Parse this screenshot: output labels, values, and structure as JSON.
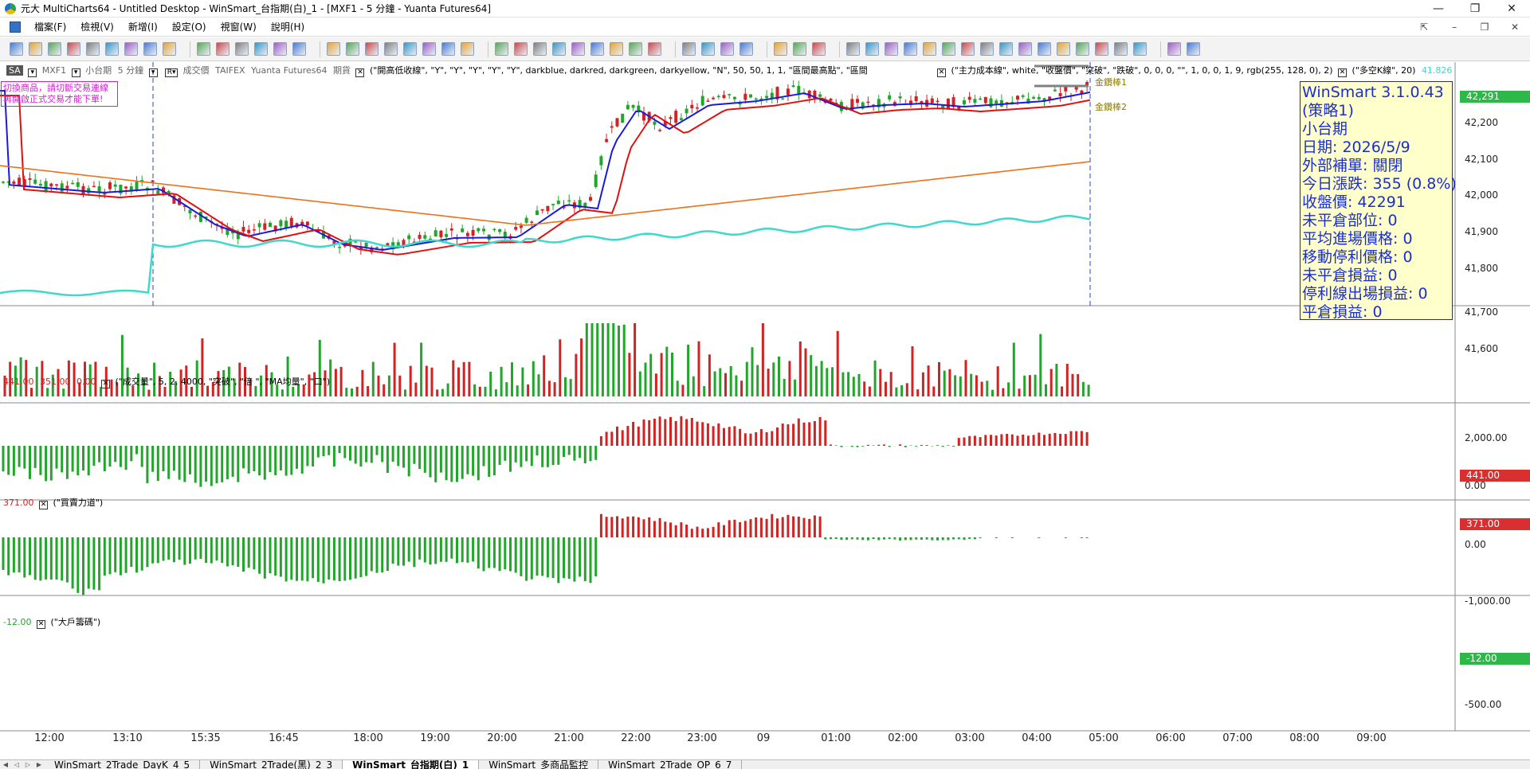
{
  "window": {
    "title": "元大 MultiCharts64 - Untitled Desktop - WinSmart_台指期(白)_1 - [MXF1 - 5 分鐘 - Yuanta Futures64]",
    "buttons": [
      "—",
      "❐",
      "✕"
    ]
  },
  "menu": {
    "items": [
      "檔案(F)",
      "檢視(V)",
      "新增(I)",
      "設定(O)",
      "視窗(W)",
      "說明(H)"
    ],
    "right_buttons": [
      "⇱",
      "–",
      "❐",
      "✕"
    ]
  },
  "chart": {
    "header": {
      "mode": "SA",
      "symbol": "MXF1",
      "name": "小台期",
      "interval": "5 分鐘",
      "field": "成交價",
      "exchange": "TAIFEX",
      "datafeed": "Yuanta Futures64",
      "type": "期貨",
      "indicator1": "(\"開高低收線\", \"Y\", \"Y\", \"Y\", \"Y\", \"Y\", darkblue, darkred, darkgreen, darkyellow, \"N\", 50, 50, 1, 1, \"區間最高點\", \"區間",
      "indicator2": "(\"主力成本線\", white, \"收盤價\", \"突破\", \"跌破\", 0, 0, 0, \"\", 1, 0, 0, 1, 9, rgb(255, 128, 0), 2)",
      "indicator3": "(\"多空K線\", 20)",
      "indicator3_value": "41.826"
    },
    "warning": [
      "切換商品，請切斷交易連線",
      "再開啟正式交易才能下單!"
    ],
    "gold_labels": [
      "金鑽棒1",
      "金鑽棒2"
    ],
    "info": [
      "WinSmart 3.1.0.43",
      "(策略1)",
      "小台期",
      "日期: 2026/5/9",
      "外部補單: 關閉",
      "今日漲跌: 355 (0.8%)",
      "收盤價: 42291",
      "未平倉部位: 0",
      "平均進場價格: 0",
      "移動停利價格: 0",
      "未平倉損益: 0",
      "停利線出場損益: 0",
      "平倉損益: 0"
    ],
    "price_axis": [
      "42,200",
      "42,100",
      "42,000",
      "41,900",
      "41,800",
      "41,700",
      "41,600"
    ],
    "last_price": "42,291",
    "volume_pane": {
      "values": {
        "v1": "441.00",
        "v2": "351.00",
        "v3": "0.00"
      },
      "label": "(\"成交量\", 5, 2, 4000, \"突破\", \"倍 \", \"MA均量\", \"口\")",
      "axis": [
        "2,000.00",
        "0.00"
      ],
      "last": "441.00"
    },
    "power_pane": {
      "value": "371.00",
      "label": "(\"買賣力道\")",
      "axis": [
        "0.00",
        "-1,000.00"
      ],
      "last": "371.00"
    },
    "big_pane": {
      "value": "-12.00",
      "label": "(\"大戶籌碼\")",
      "axis": [
        "-500.00"
      ],
      "last": "-12.00"
    },
    "time_axis": [
      "12:00",
      "13:10",
      "15:35",
      "16:45",
      "18:00",
      "19:00",
      "20:00",
      "21:00",
      "22:00",
      "23:00",
      "09",
      "01:00",
      "02:00",
      "03:00",
      "04:00",
      "05:00",
      "06:00",
      "07:00",
      "08:00",
      "09:00"
    ]
  },
  "tabs": [
    "WinSmart_2Trade_DayK_4_5",
    "WinSmart_2Trade(黑)_2_3",
    "WinSmart_台指期(白)_1",
    "WinSmart_多商品監控",
    "WinSmart_2Trade_OP_6_7"
  ],
  "colors": {
    "up": "#d32222",
    "down": "#22a52b",
    "ma_blue": "#1a1adc",
    "ma_red": "#e01010",
    "ma_orange": "#f07018",
    "ma_cyan": "#3ed8cc",
    "info_text": "#1a2ed0",
    "tag_green": "#2eb84a",
    "tag_red": "#d83030"
  }
}
